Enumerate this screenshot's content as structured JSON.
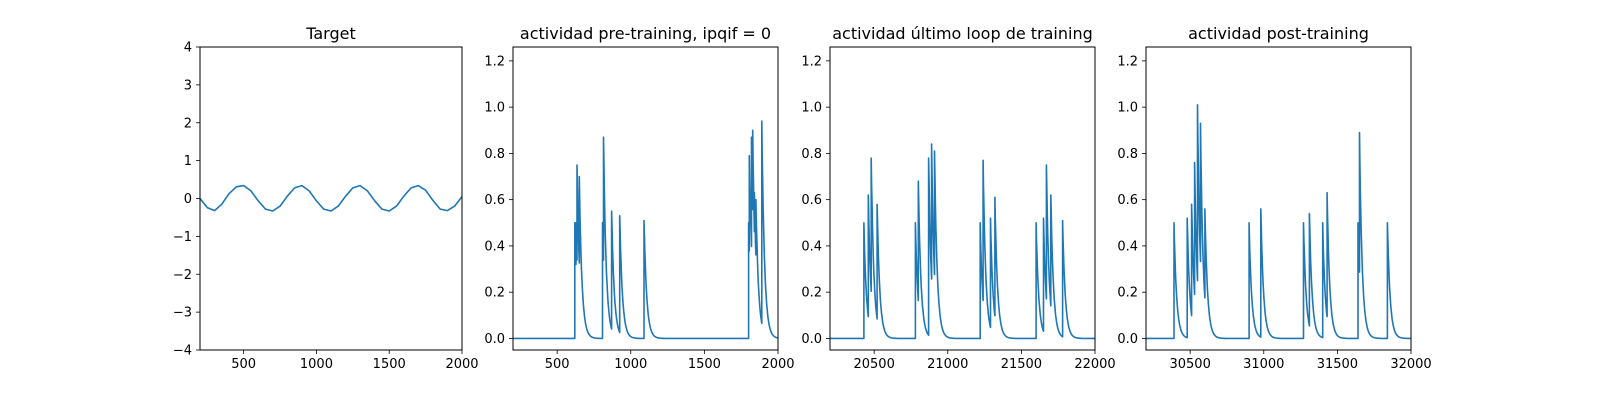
{
  "figure": {
    "background": "#ffffff",
    "line_color": "#1f77b4"
  },
  "chart_data": [
    {
      "type": "line",
      "title": "Target",
      "xlabel": "",
      "ylabel": "",
      "xlim": [
        200,
        2000
      ],
      "ylim": [
        -4,
        4
      ],
      "xticks": [
        500,
        1000,
        1500,
        2000
      ],
      "yticks": [
        -4,
        -3,
        -2,
        -1,
        0,
        1,
        2,
        3,
        4
      ],
      "xtick_labels": [
        "500",
        "1000",
        "1500",
        "2000"
      ],
      "ytick_labels": [
        "−4",
        "−3",
        "−2",
        "−1",
        "0",
        "1",
        "2",
        "3",
        "4"
      ],
      "series": [
        {
          "values_kind": "sampled",
          "x": [
            200,
            250,
            300,
            350,
            400,
            450,
            500,
            550,
            600,
            650,
            700,
            750,
            800,
            850,
            900,
            950,
            1000,
            1050,
            1100,
            1150,
            1200,
            1250,
            1300,
            1350,
            1400,
            1450,
            1500,
            1550,
            1600,
            1650,
            1700,
            1750,
            1800,
            1850,
            1900,
            1950,
            2000
          ],
          "y": [
            0.0,
            -0.24,
            -0.32,
            -0.15,
            0.13,
            0.31,
            0.34,
            0.2,
            -0.06,
            -0.28,
            -0.33,
            -0.2,
            0.06,
            0.28,
            0.34,
            0.2,
            -0.06,
            -0.28,
            -0.33,
            -0.2,
            0.06,
            0.28,
            0.34,
            0.2,
            -0.06,
            -0.28,
            -0.33,
            -0.2,
            0.06,
            0.28,
            0.34,
            0.22,
            -0.05,
            -0.28,
            -0.32,
            -0.2,
            0.05
          ]
        }
      ]
    },
    {
      "type": "line",
      "title": "actividad pre-training, ipqif = 0",
      "xlabel": "",
      "ylabel": "",
      "xlim": [
        200,
        2000
      ],
      "ylim": [
        -0.05,
        1.26
      ],
      "xticks": [
        500,
        1000,
        1500,
        2000
      ],
      "yticks": [
        0.0,
        0.2,
        0.4,
        0.6,
        0.8,
        1.0,
        1.2
      ],
      "xtick_labels": [
        "500",
        "1000",
        "1500",
        "2000"
      ],
      "ytick_labels": [
        "0.0",
        "0.2",
        "0.4",
        "0.6",
        "0.8",
        "1.0",
        "1.2"
      ],
      "decay_tau": 18,
      "spikes": [
        [
          620,
          0.5
        ],
        [
          628,
          0.5
        ],
        [
          635,
          0.75
        ],
        [
          650,
          0.7
        ],
        [
          808,
          0.5
        ],
        [
          815,
          0.87
        ],
        [
          870,
          0.55
        ],
        [
          925,
          0.53
        ],
        [
          1090,
          0.51
        ],
        [
          1800,
          0.5
        ],
        [
          1805,
          0.79
        ],
        [
          1812,
          0.62
        ],
        [
          1820,
          0.87
        ],
        [
          1828,
          0.9
        ],
        [
          1840,
          0.63
        ],
        [
          1850,
          0.6
        ],
        [
          1890,
          0.94
        ]
      ]
    },
    {
      "type": "line",
      "title": "actividad último loop de training",
      "xlabel": "",
      "ylabel": "",
      "xlim": [
        20200,
        22000
      ],
      "ylim": [
        -0.05,
        1.26
      ],
      "xticks": [
        20500,
        21000,
        21500,
        22000
      ],
      "yticks": [
        0.0,
        0.2,
        0.4,
        0.6,
        0.8,
        1.0,
        1.2
      ],
      "xtick_labels": [
        "20500",
        "21000",
        "21500",
        "22000"
      ],
      "ytick_labels": [
        "0.0",
        "0.2",
        "0.4",
        "0.6",
        "0.8",
        "1.0",
        "1.2"
      ],
      "decay_tau": 18,
      "spikes": [
        [
          20430,
          0.5
        ],
        [
          20460,
          0.62
        ],
        [
          20480,
          0.78
        ],
        [
          20520,
          0.58
        ],
        [
          20780,
          0.5
        ],
        [
          20800,
          0.68
        ],
        [
          20870,
          0.78
        ],
        [
          20890,
          0.84
        ],
        [
          20910,
          0.81
        ],
        [
          21220,
          0.5
        ],
        [
          21240,
          0.77
        ],
        [
          21290,
          0.52
        ],
        [
          21320,
          0.61
        ],
        [
          21600,
          0.5
        ],
        [
          21650,
          0.52
        ],
        [
          21670,
          0.75
        ],
        [
          21700,
          0.62
        ],
        [
          21780,
          0.51
        ]
      ]
    },
    {
      "type": "line",
      "title": "actividad post-training",
      "xlabel": "",
      "ylabel": "",
      "xlim": [
        30200,
        32000
      ],
      "ylim": [
        -0.05,
        1.26
      ],
      "xticks": [
        30500,
        31000,
        31500,
        32000
      ],
      "yticks": [
        0.0,
        0.2,
        0.4,
        0.6,
        0.8,
        1.0,
        1.2
      ],
      "xtick_labels": [
        "30500",
        "31000",
        "31500",
        "32000"
      ],
      "ytick_labels": [
        "0.0",
        "0.2",
        "0.4",
        "0.6",
        "0.8",
        "1.0",
        "1.2"
      ],
      "decay_tau": 18,
      "spikes": [
        [
          30390,
          0.5
        ],
        [
          30480,
          0.52
        ],
        [
          30510,
          0.58
        ],
        [
          30530,
          0.76
        ],
        [
          30550,
          1.01
        ],
        [
          30570,
          0.93
        ],
        [
          30600,
          0.56
        ],
        [
          30900,
          0.5
        ],
        [
          30980,
          0.56
        ],
        [
          31270,
          0.5
        ],
        [
          31310,
          0.54
        ],
        [
          31400,
          0.5
        ],
        [
          31430,
          0.63
        ],
        [
          31640,
          0.5
        ],
        [
          31650,
          0.89
        ],
        [
          31840,
          0.5
        ]
      ]
    }
  ]
}
